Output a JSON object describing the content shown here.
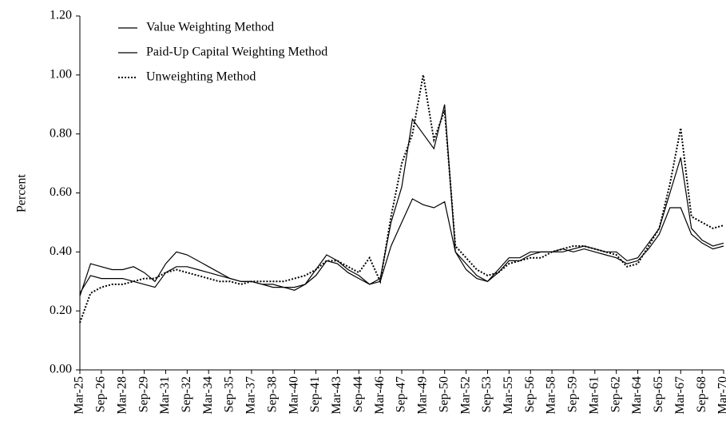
{
  "chart_data": {
    "type": "line",
    "y_label": "Percent",
    "categories": [
      "Mar-25",
      null,
      "Sep-26",
      null,
      "Mar-28",
      null,
      "Sep-29",
      null,
      "Mar-31",
      null,
      "Sep-32",
      null,
      "Mar-34",
      null,
      "Sep-35",
      null,
      "Mar-37",
      null,
      "Sep-38",
      null,
      "Mar-40",
      null,
      "Sep-41",
      null,
      "Mar-43",
      null,
      "Sep-44",
      null,
      "Mar-46",
      null,
      "Sep-47",
      null,
      "Mar-49",
      null,
      "Sep-50",
      null,
      "Mar-52",
      null,
      "Sep-53",
      null,
      "Mar-55",
      null,
      "Sep-56",
      null,
      "Mar-58",
      null,
      "Sep-59",
      null,
      "Mar-61",
      null,
      "Sep-62",
      null,
      "Mar-64",
      null,
      "Sep-65",
      null,
      "Mar-67",
      null,
      "Sep-68",
      null,
      "Mar-70"
    ],
    "series": [
      {
        "name": "Value Weighting Method",
        "color": "#000000",
        "style": "solid",
        "values": [
          0.25,
          0.36,
          0.35,
          0.34,
          0.34,
          0.35,
          0.33,
          0.3,
          0.36,
          0.4,
          0.39,
          0.37,
          0.35,
          0.33,
          0.31,
          0.3,
          0.3,
          0.29,
          0.28,
          0.28,
          0.27,
          0.29,
          0.34,
          0.39,
          0.37,
          0.34,
          0.32,
          0.29,
          0.31,
          0.5,
          0.62,
          0.85,
          0.8,
          0.75,
          0.9,
          0.4,
          0.36,
          0.32,
          0.3,
          0.34,
          0.38,
          0.38,
          0.4,
          0.4,
          0.4,
          0.4,
          0.41,
          0.42,
          0.41,
          0.4,
          0.4,
          0.37,
          0.38,
          0.43,
          0.48,
          0.6,
          0.72,
          0.48,
          0.44,
          0.42,
          0.43
        ]
      },
      {
        "name": "Paid-Up Capital Weighting Method",
        "color": "#000000",
        "style": "solid",
        "values": [
          0.26,
          0.32,
          0.31,
          0.31,
          0.31,
          0.3,
          0.29,
          0.28,
          0.33,
          0.35,
          0.35,
          0.34,
          0.33,
          0.32,
          0.31,
          0.3,
          0.3,
          0.29,
          0.29,
          0.28,
          0.28,
          0.29,
          0.32,
          0.37,
          0.36,
          0.33,
          0.31,
          0.29,
          0.3,
          0.42,
          0.5,
          0.58,
          0.56,
          0.55,
          0.57,
          0.4,
          0.34,
          0.31,
          0.3,
          0.33,
          0.37,
          0.37,
          0.39,
          0.4,
          0.4,
          0.41,
          0.4,
          0.41,
          0.4,
          0.39,
          0.38,
          0.36,
          0.37,
          0.41,
          0.46,
          0.55,
          0.55,
          0.46,
          0.43,
          0.41,
          0.42
        ]
      },
      {
        "name": "Unweighting Method",
        "color": "#000000",
        "style": "dotted",
        "values": [
          0.16,
          0.26,
          0.28,
          0.29,
          0.29,
          0.3,
          0.31,
          0.31,
          0.33,
          0.34,
          0.33,
          0.32,
          0.31,
          0.3,
          0.3,
          0.29,
          0.3,
          0.3,
          0.3,
          0.3,
          0.31,
          0.32,
          0.34,
          0.37,
          0.37,
          0.35,
          0.33,
          0.38,
          0.3,
          0.52,
          0.7,
          0.8,
          1.0,
          0.78,
          0.88,
          0.42,
          0.38,
          0.34,
          0.32,
          0.33,
          0.36,
          0.37,
          0.38,
          0.38,
          0.4,
          0.41,
          0.42,
          0.42,
          0.41,
          0.4,
          0.39,
          0.35,
          0.36,
          0.42,
          0.48,
          0.63,
          0.82,
          0.52,
          0.5,
          0.48,
          0.49
        ]
      }
    ],
    "ylim": [
      0,
      1.2
    ],
    "yticks": [
      {
        "value": 0,
        "label": "0.00"
      },
      {
        "value": 0.2,
        "label": "0.20"
      },
      {
        "value": 0.4,
        "label": "0.40"
      },
      {
        "value": 0.6,
        "label": "0.60"
      },
      {
        "value": 0.8,
        "label": "0.80"
      },
      {
        "value": 1.0,
        "label": "1.00"
      },
      {
        "value": 1.2,
        "label": "1.20"
      }
    ],
    "grid": false,
    "legend": "top-left"
  }
}
